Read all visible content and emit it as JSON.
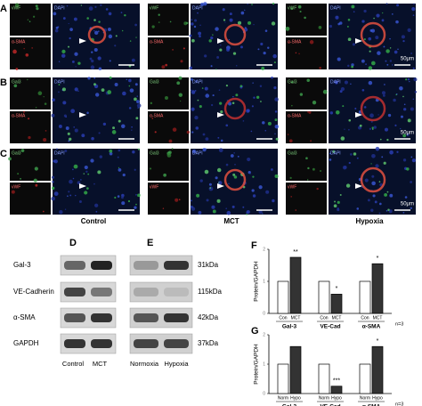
{
  "figure": {
    "rows": [
      {
        "letter": "A",
        "top": "vWF",
        "bottom": "α-SMA",
        "merge": "DAPI",
        "scale": "50μm"
      },
      {
        "letter": "B",
        "top": "Gal3",
        "bottom": "α-SMA",
        "merge": "DAPI",
        "scale": "50μm"
      },
      {
        "letter": "C",
        "top": "Gal3",
        "bottom": "vWF",
        "merge": "DAPI",
        "scale": "50μm"
      }
    ],
    "conditions": [
      "Control",
      "MCT",
      "Hypoxia"
    ],
    "blots_d": {
      "letter": "D",
      "proteins": [
        "Gal-3",
        "VE-Cadherin",
        "α-SMA",
        "GAPDH"
      ],
      "lanes": [
        "Control",
        "MCT"
      ]
    },
    "blots_e": {
      "letter": "E",
      "sizes": [
        "31kDa",
        "115kDa",
        "42kDa",
        "37kDa"
      ],
      "lanes": [
        "Normoxia",
        "Hypoxia"
      ]
    }
  },
  "chart_data": [
    {
      "type": "bar",
      "label": "F",
      "y_label": "Protein/GAPDH",
      "categories": [
        "Gal-3",
        "VE-Cad",
        "α-SMA"
      ],
      "series": [
        {
          "name": "Con",
          "color": "#ffffff",
          "values": [
            1.0,
            1.0,
            1.0
          ]
        },
        {
          "name": "MCT",
          "color": "#333333",
          "values": [
            1.75,
            0.6,
            1.55
          ]
        }
      ],
      "significance": [
        "**",
        "*",
        "*"
      ],
      "n": "n=3",
      "ylim": [
        0,
        2
      ],
      "yticks": [
        0,
        1,
        2
      ]
    },
    {
      "type": "bar",
      "label": "G",
      "y_label": "Protein/GAPDH",
      "categories": [
        "Gal-3",
        "VE-Cad",
        "α-SMA"
      ],
      "series": [
        {
          "name": "Norm",
          "color": "#ffffff",
          "values": [
            1.0,
            1.0,
            1.0
          ]
        },
        {
          "name": "Hypo",
          "color": "#333333",
          "values": [
            1.6,
            0.25,
            1.6
          ]
        }
      ],
      "significance": [
        "",
        "***",
        "*"
      ],
      "n": "n=3",
      "ylim": [
        0,
        2
      ],
      "yticks": [
        0,
        1,
        2
      ]
    }
  ]
}
